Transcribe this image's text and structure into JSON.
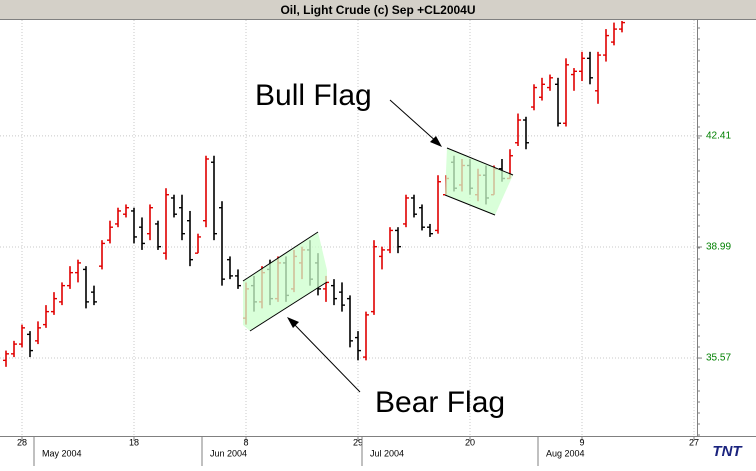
{
  "chart_data": {
    "type": "ohlc",
    "title": "Oil, Light Crude (c) Sep +CL2004U",
    "categories": [
      null,
      null,
      "28",
      null,
      null,
      null,
      null,
      null,
      null,
      null,
      null,
      null,
      null,
      null,
      null,
      null,
      "18",
      null,
      null,
      null,
      null,
      null,
      null,
      null,
      null,
      null,
      null,
      null,
      null,
      null,
      "8",
      null,
      null,
      null,
      null,
      null,
      null,
      null,
      null,
      null,
      null,
      null,
      null,
      null,
      "29",
      null,
      null,
      null,
      null,
      null,
      null,
      null,
      null,
      null,
      null,
      null,
      null,
      null,
      "20",
      null,
      null,
      null,
      null,
      null,
      null,
      null,
      null,
      null,
      null,
      null,
      null,
      null,
      "9",
      null,
      null,
      null,
      null,
      null,
      null,
      null,
      null,
      null,
      null,
      null,
      null,
      null,
      "27"
    ],
    "x_group_labels": [
      "May 2004",
      "Jun 2004",
      "Jul 2004",
      "Aug 2004"
    ],
    "open": [
      35.5,
      35.7,
      36.0,
      36.3,
      36.1,
      36.6,
      37.0,
      37.3,
      37.8,
      38.2,
      38.3,
      37.6,
      38.4,
      39.2,
      39.7,
      40.0,
      40.1,
      39.6,
      39.4,
      39.7,
      38.8,
      40.5,
      40.2,
      39.8,
      38.8,
      39.8,
      41.6,
      40.2,
      38.6,
      38.1,
      36.8,
      37.8,
      37.3,
      38.3,
      37.4,
      38.5,
      37.7,
      38.5,
      38.9,
      38.5,
      37.7,
      37.8,
      37.6,
      37.4,
      36.2,
      35.6,
      37.0,
      38.7,
      38.9,
      39.5,
      39.7,
      40.5,
      40.2,
      39.6,
      39.5,
      40.6,
      41.6,
      40.9,
      41.5,
      40.6,
      41.2,
      40.6,
      41.4,
      41.1,
      42.2,
      42.9,
      43.3,
      43.6,
      43.9,
      44.0,
      42.8,
      44.3,
      44.4,
      44.8,
      43.8,
      44.9,
      45.3,
      45.7,
      null,
      null,
      null,
      null,
      null,
      null,
      null,
      null,
      null
    ],
    "high": [
      35.8,
      36.1,
      36.6,
      36.4,
      36.7,
      37.2,
      37.6,
      37.9,
      38.4,
      38.6,
      38.4,
      37.8,
      39.2,
      39.8,
      40.2,
      40.3,
      40.2,
      39.9,
      40.3,
      39.8,
      40.8,
      40.6,
      40.6,
      40.1,
      39.4,
      41.8,
      41.8,
      40.4,
      38.7,
      38.3,
      37.9,
      38.1,
      38.4,
      38.6,
      38.7,
      38.7,
      38.9,
      39.0,
      39.2,
      38.8,
      38.1,
      38.0,
      37.9,
      37.5,
      36.4,
      37.0,
      39.2,
      39.0,
      39.6,
      39.6,
      40.6,
      40.6,
      40.3,
      39.7,
      41.2,
      41.2,
      41.8,
      41.7,
      41.7,
      41.4,
      41.5,
      41.5,
      41.7,
      42.0,
      43.1,
      43.0,
      44.0,
      44.2,
      44.3,
      44.2,
      44.8,
      44.5,
      45.0,
      45.0,
      45.0,
      45.7,
      45.9,
      45.95,
      null,
      null,
      null,
      null,
      null,
      null,
      null,
      null,
      null
    ],
    "low": [
      35.3,
      35.6,
      35.9,
      35.6,
      36.0,
      36.5,
      36.9,
      37.2,
      37.7,
      37.9,
      37.1,
      37.2,
      38.3,
      39.1,
      39.6,
      39.9,
      39.1,
      38.9,
      39.2,
      38.9,
      38.6,
      39.9,
      39.2,
      38.4,
      38.8,
      39.6,
      39.2,
      37.8,
      38.0,
      37.7,
      36.6,
      37.0,
      37.1,
      37.2,
      37.3,
      37.3,
      37.6,
      38.0,
      37.8,
      37.5,
      37.3,
      37.2,
      37.0,
      35.9,
      35.5,
      35.5,
      36.9,
      38.3,
      38.8,
      38.8,
      39.6,
      39.9,
      39.5,
      39.3,
      39.4,
      40.6,
      40.7,
      40.7,
      40.6,
      40.4,
      40.3,
      40.6,
      41.0,
      41.1,
      42.1,
      42.0,
      43.2,
      43.5,
      43.8,
      42.7,
      42.7,
      43.8,
      44.1,
      44.0,
      43.4,
      44.7,
      45.2,
      45.6,
      null,
      null,
      null,
      null,
      null,
      null,
      null,
      null,
      null
    ],
    "close": [
      35.7,
      36.0,
      36.5,
      35.8,
      36.5,
      37.0,
      37.4,
      37.8,
      38.2,
      38.5,
      37.3,
      37.3,
      39.1,
      39.6,
      40.1,
      40.2,
      39.3,
      39.1,
      40.2,
      39.0,
      40.6,
      40.0,
      39.4,
      38.6,
      39.3,
      41.7,
      39.4,
      38.0,
      38.1,
      37.8,
      37.7,
      37.3,
      38.2,
      37.4,
      38.5,
      37.5,
      38.7,
      38.9,
      38.0,
      37.7,
      37.9,
      37.4,
      37.2,
      36.1,
      35.8,
      36.9,
      39.0,
      38.9,
      39.5,
      39.0,
      40.5,
      40.0,
      39.6,
      39.4,
      41.0,
      41.1,
      40.8,
      41.5,
      40.8,
      41.2,
      40.5,
      41.4,
      41.1,
      41.8,
      42.9,
      42.2,
      43.9,
      44.0,
      44.2,
      42.8,
      44.6,
      44.4,
      44.8,
      44.2,
      44.9,
      45.5,
      45.7,
      45.9,
      null,
      null,
      null,
      null,
      null,
      null,
      null,
      null,
      null
    ],
    "up_color": "#e00000",
    "down_color": "#000000",
    "axis_label_color": "#008000",
    "ylim": [
      33.17,
      45.98
    ],
    "yticks": [
      42.41,
      38.99,
      35.57
    ],
    "y_axis_side": "right",
    "grid": true,
    "annotations": [
      "Bull Flag",
      "Bear Flag"
    ],
    "logo": "TNT"
  }
}
